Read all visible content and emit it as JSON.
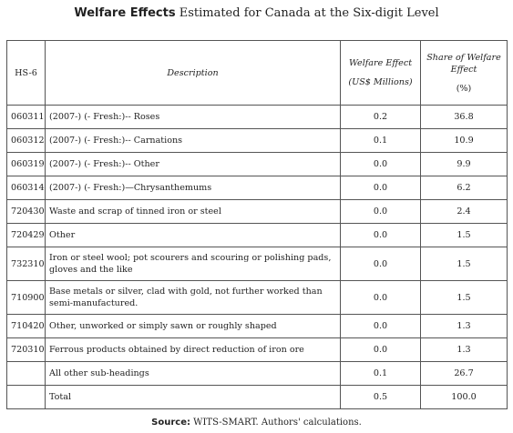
{
  "title": {
    "bold": "Welfare Effects",
    "rest": " Estimated for Canada at the Six-digit Level"
  },
  "table": {
    "headers": {
      "hs": "HS-6",
      "description": "Description",
      "welfare_line1": "Welfare Effect",
      "welfare_line2": "(US$ Millions)",
      "share_line1": "Share of Welfare",
      "share_line2": "Effect",
      "share_line3": "(%)"
    },
    "rows": [
      {
        "hs": "060311",
        "desc": "(2007-) (- Fresh:)-- Roses",
        "we": "0.2",
        "share": "36.8"
      },
      {
        "hs": "060312",
        "desc": "(2007-) (- Fresh:)-- Carnations",
        "we": "0.1",
        "share": "10.9"
      },
      {
        "hs": "060319",
        "desc": " (2007-) (- Fresh:)-- Other",
        "we": "0.0",
        "share": "9.9"
      },
      {
        "hs": "060314",
        "desc": "(2007-) (- Fresh:)—Chrysanthemums",
        "we": "0.0",
        "share": "6.2"
      },
      {
        "hs": "720430",
        "desc": "Waste and scrap of tinned iron or steel",
        "we": "0.0",
        "share": "2.4"
      },
      {
        "hs": "720429",
        "desc": "Other",
        "we": "0.0",
        "share": "1.5"
      },
      {
        "hs": "732310",
        "desc": "Iron or steel wool; pot scourers and scouring or polishing pads, gloves and the like",
        "we": "0.0",
        "share": "1.5"
      },
      {
        "hs": "710900",
        "desc": "Base metals or silver, clad with gold, not further worked than semi-manufactured.",
        "we": "0.0",
        "share": "1.5"
      },
      {
        "hs": "710420",
        "desc": "Other, unworked or simply sawn or roughly shaped",
        "we": "0.0",
        "share": "1.3"
      },
      {
        "hs": "720310",
        "desc": "Ferrous products obtained by direct reduction of iron ore",
        "we": "0.0",
        "share": "1.3"
      },
      {
        "hs": "",
        "desc": "All other sub-headings",
        "we": "0.1",
        "share": "26.7"
      },
      {
        "hs": "",
        "desc": "Total",
        "we": "0.5",
        "share": "100.0"
      }
    ]
  },
  "source": {
    "label": "Source:",
    "text": " WITS-SMART. Authors' calculations."
  }
}
